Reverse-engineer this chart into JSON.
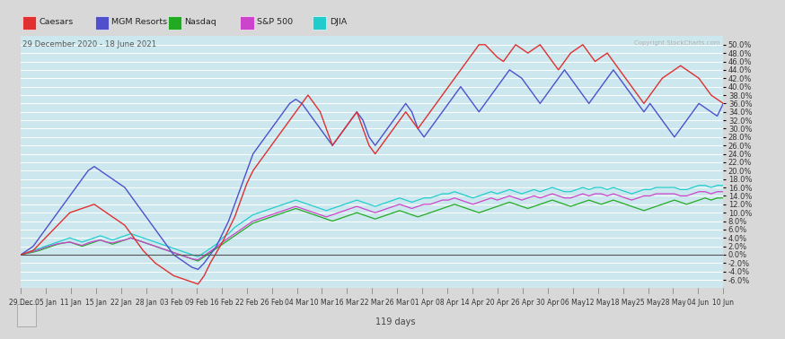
{
  "date_range_label": "29 December 2020 - 18 June 2021",
  "copyright": "Copyright StockCharts.com",
  "days_label": "119 days",
  "plot_bg": "#cce8ee",
  "grid_color": "#ffffff",
  "header_bg": "#d8d8d8",
  "footer_bg": "#d8d8d8",
  "zero_line_color": "#555555",
  "ylim": [
    -8,
    52
  ],
  "ytick_step": 2,
  "legend_entries": [
    {
      "label": "Caesars",
      "color": "#e03030"
    },
    {
      "label": "MGM Resorts",
      "color": "#5050cc"
    },
    {
      "label": "Nasdaq",
      "color": "#22aa22"
    },
    {
      "label": "S&P 500",
      "color": "#cc44cc"
    },
    {
      "label": "DJIA",
      "color": "#22cccc"
    }
  ],
  "x_tick_labels": [
    "29 Dec",
    "05 Jan",
    "11 Jan",
    "15 Jan",
    "22 Jan",
    "28 Jan",
    "03 Feb",
    "09 Feb",
    "16 Feb",
    "22 Feb",
    "26 Feb",
    "04 Mar",
    "10 Mar",
    "16 Mar",
    "22 Mar",
    "26 Mar",
    "01 Apr",
    "08 Apr",
    "14 Apr",
    "20 Apr",
    "26 Apr",
    "30 Apr",
    "06 May",
    "12 May",
    "18 May",
    "25 May",
    "28 May",
    "04 Jun",
    "10 Jun"
  ],
  "czr": [
    0.0,
    0.5,
    1.0,
    2.5,
    4.0,
    5.5,
    7.0,
    8.5,
    10.0,
    10.5,
    11.0,
    11.5,
    12.0,
    11.0,
    10.0,
    9.0,
    8.0,
    7.0,
    5.0,
    3.0,
    1.0,
    -0.5,
    -2.0,
    -3.0,
    -4.0,
    -5.0,
    -5.5,
    -6.0,
    -6.5,
    -7.0,
    -5.0,
    -2.0,
    0.5,
    3.0,
    6.0,
    9.0,
    13.0,
    17.0,
    20.0,
    22.0,
    24.0,
    26.0,
    28.0,
    30.0,
    32.0,
    34.0,
    36.0,
    38.0,
    36.0,
    34.0,
    30.0,
    26.0,
    28.0,
    30.0,
    32.0,
    34.0,
    30.0,
    26.0,
    24.0,
    26.0,
    28.0,
    30.0,
    32.0,
    34.0,
    32.0,
    30.0,
    32.0,
    34.0,
    36.0,
    38.0,
    40.0,
    42.0,
    44.0,
    46.0,
    48.0,
    50.0,
    50.0,
    48.5,
    47.0,
    46.0,
    48.0,
    50.0,
    49.0,
    48.0,
    49.0,
    50.0,
    48.0,
    46.0,
    44.0,
    46.0,
    48.0,
    49.0,
    50.0,
    48.0,
    46.0,
    47.0,
    48.0,
    46.0,
    44.0,
    42.0,
    40.0,
    38.0,
    36.0,
    38.0,
    40.0,
    42.0,
    43.0,
    44.0,
    45.0,
    44.0,
    43.0,
    42.0,
    40.0,
    38.0,
    37.0,
    36.0
  ],
  "mgm": [
    0.0,
    1.0,
    2.0,
    4.0,
    6.0,
    8.0,
    10.0,
    12.0,
    14.0,
    16.0,
    18.0,
    20.0,
    21.0,
    20.0,
    19.0,
    18.0,
    17.0,
    16.0,
    14.0,
    12.0,
    10.0,
    8.0,
    6.0,
    4.0,
    2.0,
    0.0,
    -1.0,
    -2.0,
    -3.0,
    -3.5,
    -2.0,
    0.0,
    2.0,
    5.0,
    8.0,
    12.0,
    16.0,
    20.0,
    24.0,
    26.0,
    28.0,
    30.0,
    32.0,
    34.0,
    36.0,
    37.0,
    36.0,
    34.0,
    32.0,
    30.0,
    28.0,
    26.0,
    28.0,
    30.0,
    32.0,
    34.0,
    32.0,
    28.0,
    26.0,
    28.0,
    30.0,
    32.0,
    34.0,
    36.0,
    34.0,
    30.0,
    28.0,
    30.0,
    32.0,
    34.0,
    36.0,
    38.0,
    40.0,
    38.0,
    36.0,
    34.0,
    36.0,
    38.0,
    40.0,
    42.0,
    44.0,
    43.0,
    42.0,
    40.0,
    38.0,
    36.0,
    38.0,
    40.0,
    42.0,
    44.0,
    42.0,
    40.0,
    38.0,
    36.0,
    38.0,
    40.0,
    42.0,
    44.0,
    42.0,
    40.0,
    38.0,
    36.0,
    34.0,
    36.0,
    34.0,
    32.0,
    30.0,
    28.0,
    30.0,
    32.0,
    34.0,
    36.0,
    35.0,
    34.0,
    33.0,
    36.0
  ],
  "nasdaq": [
    0.0,
    0.3,
    0.6,
    1.0,
    1.5,
    2.0,
    2.5,
    2.8,
    3.0,
    2.5,
    2.0,
    2.5,
    3.0,
    3.5,
    3.0,
    2.5,
    3.0,
    3.5,
    4.0,
    3.5,
    3.0,
    2.5,
    2.0,
    1.5,
    1.0,
    0.5,
    0.0,
    -0.5,
    -1.0,
    -1.5,
    -0.5,
    0.5,
    1.5,
    2.5,
    3.5,
    4.5,
    5.5,
    6.5,
    7.5,
    8.0,
    8.5,
    9.0,
    9.5,
    10.0,
    10.5,
    11.0,
    10.5,
    10.0,
    9.5,
    9.0,
    8.5,
    8.0,
    8.5,
    9.0,
    9.5,
    10.0,
    9.5,
    9.0,
    8.5,
    9.0,
    9.5,
    10.0,
    10.5,
    10.0,
    9.5,
    9.0,
    9.5,
    10.0,
    10.5,
    11.0,
    11.5,
    12.0,
    11.5,
    11.0,
    10.5,
    10.0,
    10.5,
    11.0,
    11.5,
    12.0,
    12.5,
    12.0,
    11.5,
    11.0,
    11.5,
    12.0,
    12.5,
    13.0,
    12.5,
    12.0,
    11.5,
    12.0,
    12.5,
    13.0,
    12.5,
    12.0,
    12.5,
    13.0,
    12.5,
    12.0,
    11.5,
    11.0,
    10.5,
    11.0,
    11.5,
    12.0,
    12.5,
    13.0,
    12.5,
    12.0,
    12.5,
    13.0,
    13.5,
    13.0,
    13.5,
    13.5
  ],
  "sp500": [
    0.0,
    0.4,
    0.8,
    1.2,
    1.8,
    2.2,
    2.6,
    2.8,
    3.0,
    2.6,
    2.2,
    2.8,
    3.2,
    3.5,
    3.0,
    2.8,
    3.2,
    3.5,
    4.0,
    3.5,
    3.0,
    2.5,
    2.0,
    1.5,
    1.0,
    0.5,
    0.0,
    -0.5,
    -1.0,
    -1.2,
    -0.2,
    0.8,
    1.8,
    3.0,
    4.0,
    5.0,
    6.0,
    7.0,
    8.0,
    8.5,
    9.0,
    9.5,
    10.0,
    10.5,
    11.0,
    11.5,
    11.0,
    10.5,
    10.0,
    9.5,
    9.0,
    9.5,
    10.0,
    10.5,
    11.0,
    11.5,
    11.0,
    10.5,
    10.0,
    10.5,
    11.0,
    11.5,
    12.0,
    11.5,
    11.0,
    11.5,
    12.0,
    12.0,
    12.5,
    13.0,
    13.0,
    13.5,
    13.0,
    12.5,
    12.0,
    12.5,
    13.0,
    13.5,
    13.0,
    13.5,
    14.0,
    13.5,
    13.0,
    13.5,
    14.0,
    13.5,
    14.0,
    14.5,
    14.0,
    13.5,
    13.5,
    14.0,
    14.5,
    14.0,
    14.5,
    14.5,
    14.0,
    14.5,
    14.0,
    13.5,
    13.0,
    13.5,
    14.0,
    14.0,
    14.5,
    14.5,
    14.5,
    14.5,
    14.0,
    14.0,
    14.5,
    15.0,
    15.0,
    14.5,
    15.0,
    15.0
  ],
  "djia": [
    0.0,
    0.5,
    1.0,
    1.5,
    2.0,
    2.5,
    3.0,
    3.5,
    4.0,
    3.5,
    3.0,
    3.5,
    4.0,
    4.5,
    4.0,
    3.5,
    4.0,
    4.5,
    5.0,
    4.5,
    4.0,
    3.5,
    3.0,
    2.5,
    2.0,
    1.5,
    1.0,
    0.5,
    0.0,
    -0.5,
    0.5,
    1.5,
    2.5,
    4.0,
    5.0,
    6.5,
    7.5,
    8.5,
    9.5,
    10.0,
    10.5,
    11.0,
    11.5,
    12.0,
    12.5,
    13.0,
    12.5,
    12.0,
    11.5,
    11.0,
    10.5,
    11.0,
    11.5,
    12.0,
    12.5,
    13.0,
    12.5,
    12.0,
    11.5,
    12.0,
    12.5,
    13.0,
    13.5,
    13.0,
    12.5,
    13.0,
    13.5,
    13.5,
    14.0,
    14.5,
    14.5,
    15.0,
    14.5,
    14.0,
    13.5,
    14.0,
    14.5,
    15.0,
    14.5,
    15.0,
    15.5,
    15.0,
    14.5,
    15.0,
    15.5,
    15.0,
    15.5,
    16.0,
    15.5,
    15.0,
    15.0,
    15.5,
    16.0,
    15.5,
    16.0,
    16.0,
    15.5,
    16.0,
    15.5,
    15.0,
    14.5,
    15.0,
    15.5,
    15.5,
    16.0,
    16.0,
    16.0,
    16.0,
    15.5,
    15.5,
    16.0,
    16.5,
    16.5,
    16.0,
    16.5,
    16.5
  ]
}
